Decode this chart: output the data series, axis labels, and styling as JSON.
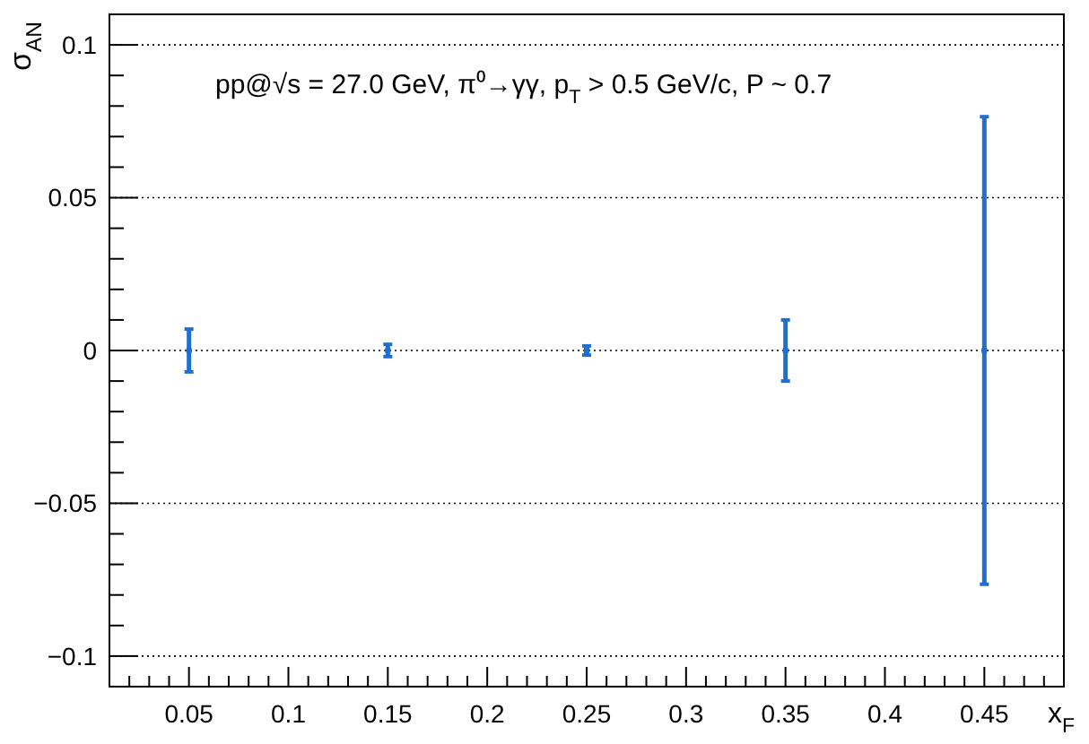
{
  "chart_data": {
    "type": "scatter",
    "ylabel": "σ$_{AN}$",
    "xlabel": "x$_{F}$",
    "annotations": [
      "pp@√s = 27.0 GeV,   π⁰→γγ,   p$_{T}$ > 0.5 GeV/c,  P ~ 0.7"
    ],
    "x": [
      0.05,
      0.15,
      0.25,
      0.35,
      0.45
    ],
    "series": [
      {
        "color": "#1f6fd1",
        "values": [
          0,
          0,
          0,
          0,
          0
        ],
        "errors": [
          0.007,
          0.002,
          0.0015,
          0.01,
          0.0765
        ]
      }
    ],
    "marker": "square",
    "xlim": [
      0.01,
      0.49
    ],
    "xticks": [
      0.05,
      0.1,
      0.15,
      0.2,
      0.25,
      0.3,
      0.35,
      0.4,
      0.45
    ],
    "ylim": [
      -0.11,
      0.11
    ],
    "yticks": [
      {
        "value": -0.1,
        "label": "−0.1"
      },
      {
        "value": -0.05,
        "label": "−0.05"
      },
      0,
      0.05,
      0.1
    ],
    "grid": "y"
  }
}
